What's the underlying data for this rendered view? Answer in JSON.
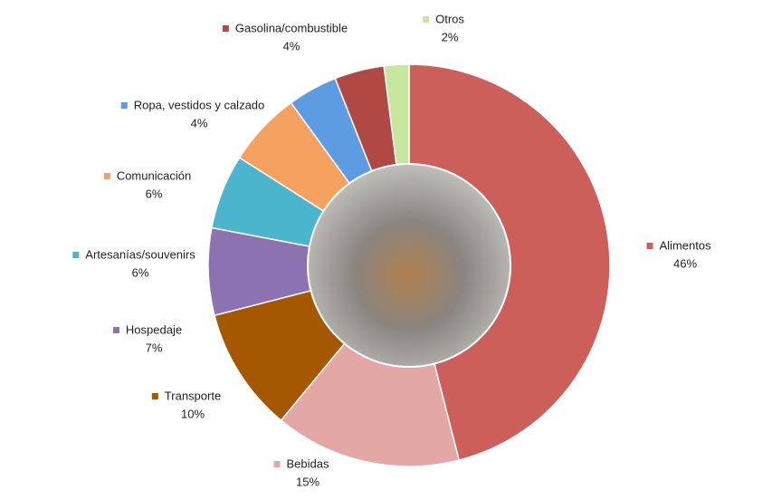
{
  "chart_data": {
    "type": "donut",
    "categories": [
      "Alimentos",
      "Bebidas",
      "Transporte",
      "Hospedaje",
      "Artesanías/souvenirs",
      "Comunicación",
      "Ropa, vestidos y calzado",
      "Gasolina/combustible",
      "Otros"
    ],
    "values": [
      46,
      15,
      10,
      7,
      6,
      6,
      4,
      4,
      2
    ],
    "value_labels": [
      "46%",
      "15%",
      "10%",
      "7%",
      "6%",
      "6%",
      "4%",
      "4%",
      "2%"
    ],
    "colors": [
      "#cd5f5b",
      "#e3a7a5",
      "#a65800",
      "#8c72b0",
      "#4bb5ce",
      "#f5a261",
      "#5d9be2",
      "#b04844",
      "#c6e79d"
    ]
  }
}
